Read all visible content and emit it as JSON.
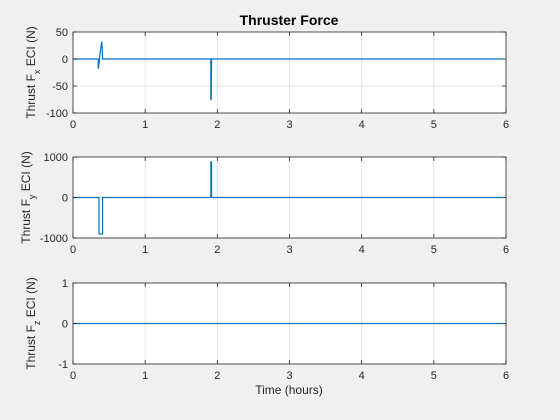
{
  "figure": {
    "title": "Thruster Force",
    "xlabel": "Time (hours)",
    "background": "#f0f0f0",
    "axes_background": "#ffffff",
    "line_color": "#0072bd",
    "grid_color": "#e3e3e3",
    "axis_color": "#262626"
  },
  "chart_data": [
    {
      "type": "line",
      "title": "Thruster Force",
      "ylabel": {
        "base": "Thrust F",
        "sub": "x",
        "rest": " ECI (N)"
      },
      "xlabel": "",
      "xlim": [
        0,
        6
      ],
      "ylim": [
        -100,
        50
      ],
      "grid": true,
      "xticks": [
        0,
        1,
        2,
        3,
        4,
        5,
        6
      ],
      "xtick_labels": [
        "0",
        "1",
        "2",
        "3",
        "4",
        "5",
        "6"
      ],
      "yticks": [
        50,
        0,
        -50,
        -100
      ],
      "ytick_labels": [
        "50",
        "0",
        "-50",
        "-100"
      ],
      "series": [
        {
          "x": [
            0,
            0.35,
            0.35,
            0.36,
            0.37,
            0.38,
            0.39,
            0.4,
            0.41,
            1.91,
            1.91,
            1.915,
            1.92,
            5.95
          ],
          "y": [
            0,
            0,
            -18,
            -10,
            5,
            15,
            25,
            32,
            0,
            0,
            -75,
            -75,
            0,
            0
          ]
        }
      ]
    },
    {
      "type": "line",
      "title": "",
      "ylabel": {
        "base": "Thrust F",
        "sub": "y",
        "rest": " ECI (N)"
      },
      "xlabel": "",
      "xlim": [
        0,
        6
      ],
      "ylim": [
        -1000,
        1000
      ],
      "grid": true,
      "xticks": [
        0,
        1,
        2,
        3,
        4,
        5,
        6
      ],
      "xtick_labels": [
        "0",
        "1",
        "2",
        "3",
        "4",
        "5",
        "6"
      ],
      "yticks": [
        1000,
        0,
        -1000
      ],
      "ytick_labels": [
        "1000",
        "0",
        "-1000"
      ],
      "series": [
        {
          "x": [
            0,
            0.36,
            0.36,
            0.41,
            0.41,
            1.91,
            1.91,
            1.92,
            1.92,
            5.95
          ],
          "y": [
            0,
            0,
            -900,
            -900,
            0,
            0,
            880,
            880,
            0,
            0
          ]
        }
      ]
    },
    {
      "type": "line",
      "title": "",
      "ylabel": {
        "base": "Thrust F",
        "sub": "z",
        "rest": " ECI (N)"
      },
      "xlabel": "Time (hours)",
      "xlim": [
        0,
        6
      ],
      "ylim": [
        -1,
        1
      ],
      "grid": true,
      "xticks": [
        0,
        1,
        2,
        3,
        4,
        5,
        6
      ],
      "xtick_labels": [
        "0",
        "1",
        "2",
        "3",
        "4",
        "5",
        "6"
      ],
      "yticks": [
        1,
        0,
        -1
      ],
      "ytick_labels": [
        "1",
        "0",
        "-1"
      ],
      "series": [
        {
          "x": [
            0,
            5.95
          ],
          "y": [
            0,
            0
          ]
        }
      ]
    }
  ]
}
